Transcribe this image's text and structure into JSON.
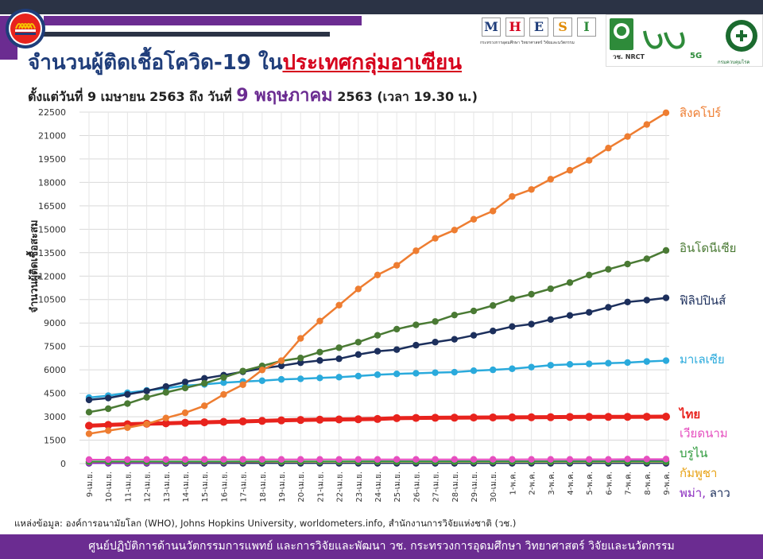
{
  "title": {
    "prefix": "จำนวนผู้ติดเชื้อโควิด-19 ใน",
    "highlight": "ประเทศกลุ่มอาเซียน"
  },
  "subtitle": {
    "part1": "ตั้งแต่วันที่ 9 เมษายน 2563 ถึง วันที่ ",
    "part2": "9 พฤษภาคม",
    "part3": " 2563 (เวลา 19.30 น.)"
  },
  "logos": {
    "mhesi_letters": [
      "M",
      "H",
      "E",
      "S",
      "I"
    ],
    "mhesi_colors": [
      "#1f3d7a",
      "#d6001c",
      "#1f3d7a",
      "#e08a00",
      "#2e8b3a"
    ],
    "mhesi_caption": "กระทรวงการอุดมศึกษา วิทยาศาสตร์ วิจัยและนวัตกรรม",
    "nrct": "วช. NRCT",
    "fivg": "5G",
    "ddc": "กรมควบคุมโรค"
  },
  "source": "แหล่งข้อมูล: องค์การอนามัยโลก (WHO), Johns Hopkins University, worldometers.info, สำนักงานการวิจัยแห่งชาติ (วช.)",
  "footer": "ศูนย์ปฏิบัติการด้านนวัตกรรมการแพทย์ และการวิจัยและพัฒนา วช. กระทรวงการอุดมศึกษา วิทยาศาสตร์ วิจัยและนวัตกรรม",
  "chart_data": {
    "type": "line",
    "title": "จำนวนผู้ติดเชื้อโควิด-19 ในประเทศกลุ่มอาเซียน",
    "xlabel": "",
    "ylabel": "จำนวนผู้ติดเชื้อสะสม",
    "ylim": [
      0,
      22500
    ],
    "yticks": [
      0,
      1500,
      3000,
      4500,
      6000,
      7500,
      9000,
      10500,
      12000,
      13500,
      15000,
      16500,
      18000,
      19500,
      21000,
      22500
    ],
    "grid": true,
    "legend": "right, at line ends",
    "categories": [
      "9-เม.ย.",
      "10-เม.ย.",
      "11-เม.ย.",
      "12-เม.ย.",
      "13-เม.ย.",
      "14-เม.ย.",
      "15-เม.ย.",
      "16-เม.ย.",
      "17-เม.ย.",
      "18-เม.ย.",
      "19-เม.ย.",
      "20-เม.ย.",
      "21-เม.ย.",
      "22-เม.ย.",
      "23-เม.ย.",
      "24-เม.ย.",
      "25-เม.ย.",
      "26-เม.ย.",
      "27-เม.ย.",
      "28-เม.ย.",
      "29-เม.ย.",
      "30-เม.ย.",
      "1-พ.ค.",
      "2-พ.ค.",
      "3-พ.ค.",
      "4-พ.ค.",
      "5-พ.ค.",
      "6-พ.ค.",
      "7-พ.ค.",
      "8-พ.ค.",
      "9-พ.ค."
    ],
    "series": [
      {
        "name": "สิงคโปร์",
        "color": "#ee7d31",
        "width": 2.5,
        "values": [
          1910,
          2108,
          2299,
          2532,
          2918,
          3252,
          3699,
          4427,
          5050,
          5992,
          6588,
          8014,
          9125,
          10141,
          11178,
          12075,
          12693,
          13624,
          14423,
          14951,
          15641,
          16169,
          17101,
          17548,
          18205,
          18778,
          19410,
          20198,
          20939,
          21707,
          22460
        ]
      },
      {
        "name": "อินโดนีเซีย",
        "color": "#4a7a34",
        "width": 2.5,
        "values": [
          3293,
          3512,
          3842,
          4241,
          4557,
          4839,
          5136,
          5516,
          5923,
          6248,
          6575,
          6760,
          7135,
          7418,
          7775,
          8211,
          8607,
          8882,
          9096,
          9511,
          9771,
          10118,
          10551,
          10843,
          11192,
          11587,
          12071,
          12438,
          12776,
          13112,
          13645
        ]
      },
      {
        "name": "ฟิลิปปินส์",
        "color": "#1c2f5c",
        "width": 2.5,
        "values": [
          4076,
          4195,
          4428,
          4648,
          4932,
          5223,
          5453,
          5660,
          5878,
          6087,
          6259,
          6459,
          6599,
          6710,
          6981,
          7192,
          7294,
          7579,
          7777,
          7958,
          8212,
          8488,
          8772,
          8928,
          9223,
          9485,
          9684,
          10004,
          10343,
          10463,
          10610
        ]
      },
      {
        "name": "มาเลเซีย",
        "color": "#2aaadc",
        "width": 2.5,
        "values": [
          4228,
          4346,
          4530,
          4683,
          4817,
          4987,
          5072,
          5182,
          5251,
          5305,
          5389,
          5425,
          5482,
          5532,
          5603,
          5691,
          5742,
          5780,
          5820,
          5851,
          5945,
          6002,
          6071,
          6176,
          6298,
          6353,
          6383,
          6428,
          6467,
          6535,
          6589
        ]
      },
      {
        "name": "ไทย",
        "color": "#e8231d",
        "width": 5,
        "values": [
          2423,
          2473,
          2518,
          2551,
          2579,
          2613,
          2643,
          2672,
          2700,
          2733,
          2765,
          2792,
          2811,
          2826,
          2839,
          2854,
          2907,
          2922,
          2931,
          2938,
          2947,
          2954,
          2960,
          2966,
          2969,
          2987,
          2988,
          2989,
          2992,
          3000,
          3004
        ]
      },
      {
        "name": "เวียดนาม",
        "color": "#e64fbf",
        "width": 2,
        "values": [
          255,
          257,
          258,
          262,
          265,
          266,
          267,
          268,
          268,
          268,
          268,
          268,
          268,
          268,
          268,
          268,
          270,
          270,
          270,
          270,
          270,
          270,
          270,
          271,
          271,
          271,
          271,
          271,
          288,
          288,
          288
        ]
      },
      {
        "name": "บรูไน",
        "color": "#2e9a3c",
        "width": 2,
        "values": [
          135,
          135,
          136,
          136,
          136,
          136,
          136,
          136,
          137,
          137,
          138,
          138,
          138,
          138,
          138,
          138,
          138,
          138,
          138,
          138,
          138,
          138,
          138,
          138,
          138,
          141,
          141,
          141,
          141,
          141,
          141
        ]
      },
      {
        "name": "กัมพูชา",
        "color": "#e8a317",
        "width": 2,
        "values": [
          117,
          119,
          120,
          122,
          122,
          122,
          122,
          122,
          122,
          122,
          122,
          122,
          122,
          122,
          122,
          122,
          122,
          122,
          122,
          122,
          122,
          122,
          122,
          122,
          122,
          122,
          122,
          122,
          122,
          122,
          122
        ]
      },
      {
        "name": "พม่า",
        "color": "#8a2bbf",
        "width": 2,
        "values": [
          28,
          28,
          39,
          41,
          62,
          74,
          85,
          88,
          98,
          111,
          119,
          121,
          127,
          127,
          139,
          144,
          144,
          146,
          146,
          150,
          150,
          150,
          151,
          155,
          155,
          161,
          161,
          162,
          176,
          177,
          178
        ]
      },
      {
        "name": "ลาว",
        "color": "#1c2f5c",
        "width": 1.5,
        "values": [
          16,
          16,
          19,
          19,
          19,
          19,
          19,
          19,
          19,
          19,
          19,
          19,
          19,
          19,
          19,
          19,
          19,
          19,
          19,
          19,
          19,
          19,
          19,
          19,
          19,
          19,
          19,
          19,
          19,
          19,
          19
        ]
      }
    ],
    "end_labels": [
      {
        "text": "สิงคโปร์",
        "color": "#ee7d31",
        "size": "normal"
      },
      {
        "text": "อินโดนีเซีย",
        "color": "#4a7a34",
        "size": "normal"
      },
      {
        "text": "ฟิลิปปินส์",
        "color": "#1c2f5c",
        "size": "normal"
      },
      {
        "text": "มาเลเซีย",
        "color": "#2aaadc",
        "size": "normal"
      },
      {
        "text": "ไทย",
        "color": "#e8231d",
        "size": "large"
      },
      {
        "text": "เวียดนาม",
        "color": "#e64fbf",
        "size": "normal"
      },
      {
        "text": "บรูไน",
        "color": "#2e9a3c",
        "size": "normal"
      },
      {
        "text": "กัมพูชา",
        "color": "#e8a317",
        "size": "normal"
      },
      {
        "text": "พม่า, ลาว",
        "color": "#8a2bbf",
        "size": "normal"
      }
    ]
  }
}
